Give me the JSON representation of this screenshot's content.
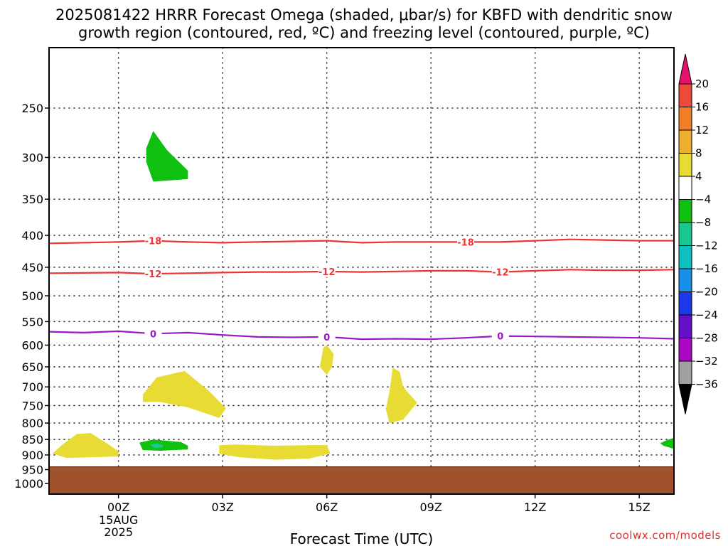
{
  "title_line1": "2025081422 HRRR Forecast Omega (shaded, μbar/s) for KBFD with dendritic snow",
  "title_line2": "growth region (contoured, red, ºC) and freezing level (contoured, purple, ºC)",
  "footer": "coolwx.com/models",
  "chart_data": {
    "type": "contour",
    "title": "2025081422 HRRR Forecast Omega (shaded, μbar/s) for KBFD with dendritic snow growth region (contoured, red, ºC) and freezing level (contoured, purple, ºC)",
    "xlabel": "Forecast Time (UTC)",
    "ylabel": "",
    "x_unit": "hours from 00Z 15AUG 2025",
    "xlim": [
      -2,
      16
    ],
    "ylim": [
      1040,
      200
    ],
    "y_scale": "log-pressure (hPa)",
    "grid": true,
    "x_ticks": [
      {
        "x": 0,
        "label": "00Z",
        "sub": [
          "15AUG",
          "2025"
        ]
      },
      {
        "x": 3,
        "label": "03Z"
      },
      {
        "x": 6,
        "label": "06Z"
      },
      {
        "x": 9,
        "label": "09Z"
      },
      {
        "x": 12,
        "label": "12Z"
      },
      {
        "x": 15,
        "label": "15Z"
      }
    ],
    "y_ticks": [
      250,
      300,
      350,
      400,
      450,
      500,
      550,
      600,
      650,
      700,
      750,
      800,
      850,
      900,
      950,
      1000
    ],
    "colorbar": {
      "labels": [
        "20",
        "16",
        "12",
        "8",
        "4",
        "−4",
        "−8",
        "−12",
        "−16",
        "−20",
        "−24",
        "−28",
        "−32",
        "−36"
      ],
      "colors": [
        "#e8106e",
        "#ee4a3a",
        "#f07f28",
        "#eeae30",
        "#e8dc34",
        "#ffffff",
        "#10c010",
        "#18c890",
        "#10c0c0",
        "#1890e8",
        "#1c38e8",
        "#6410c8",
        "#a808c0",
        "#a0a0a0",
        "#000000"
      ]
    },
    "contours": [
      {
        "name": "dendritic -18",
        "color": "#ee3535",
        "labels": [
          "-18"
        ],
        "x": [
          -2,
          0,
          1,
          2,
          3,
          4,
          5,
          6,
          7,
          8,
          9,
          10,
          11,
          12,
          13,
          14,
          15,
          16
        ],
        "p": [
          412,
          410,
          408,
          410,
          411,
          410,
          409,
          408,
          411,
          410,
          410,
          410,
          410,
          408,
          406,
          407,
          408,
          408
        ]
      },
      {
        "name": "dendritic -12",
        "color": "#ee3535",
        "labels": [
          "-12"
        ],
        "x": [
          -2,
          0,
          1,
          2,
          3,
          4,
          5,
          6,
          7,
          8,
          9,
          10,
          11,
          12,
          13,
          14,
          15,
          16
        ],
        "p": [
          460,
          459,
          461,
          460,
          459,
          458,
          458,
          457,
          458,
          457,
          456,
          456,
          458,
          456,
          454,
          455,
          455,
          454
        ]
      },
      {
        "name": "freezing level 0",
        "color": "#9a18c8",
        "labels": [
          "0"
        ],
        "x": [
          -2,
          -1,
          0,
          1,
          2,
          3,
          4,
          5,
          6,
          7,
          8,
          9,
          10,
          11,
          12,
          13,
          14,
          15,
          16
        ],
        "p": [
          571,
          573,
          570,
          575,
          573,
          578,
          582,
          583,
          582,
          587,
          586,
          587,
          584,
          580,
          581,
          582,
          583,
          584,
          586
        ]
      }
    ],
    "shaded_regions": [
      {
        "range": "4 to 8",
        "color": "#e8dc34",
        "points": [
          [
            -1.6,
            865
          ],
          [
            -1.2,
            833
          ],
          [
            -0.8,
            830
          ],
          [
            -0.3,
            865
          ],
          [
            0.0,
            888
          ],
          [
            0.0,
            905
          ],
          [
            -0.6,
            907
          ],
          [
            -1.5,
            910
          ],
          [
            -1.9,
            895
          ]
        ]
      },
      {
        "range": "4 to 8",
        "color": "#e8dc34",
        "points": [
          [
            0.7,
            720
          ],
          [
            1.1,
            676
          ],
          [
            1.9,
            660
          ],
          [
            2.6,
            710
          ],
          [
            3.1,
            758
          ],
          [
            2.9,
            785
          ],
          [
            2.0,
            755
          ],
          [
            1.2,
            740
          ],
          [
            0.7,
            740
          ]
        ]
      },
      {
        "range": "4 to 8",
        "color": "#e8dc34",
        "points": [
          [
            2.9,
            868
          ],
          [
            3.4,
            866
          ],
          [
            4.5,
            870
          ],
          [
            5.5,
            868
          ],
          [
            6.0,
            868
          ],
          [
            6.1,
            895
          ],
          [
            5.5,
            912
          ],
          [
            4.5,
            916
          ],
          [
            3.5,
            908
          ],
          [
            2.9,
            896
          ]
        ]
      },
      {
        "range": "4 to 8",
        "color": "#e8dc34",
        "points": [
          [
            5.9,
            606
          ],
          [
            6.0,
            600
          ],
          [
            6.2,
            620
          ],
          [
            6.15,
            650
          ],
          [
            6.0,
            670
          ],
          [
            5.8,
            650
          ]
        ]
      },
      {
        "range": "4 to 8",
        "color": "#e8dc34",
        "points": [
          [
            7.9,
            652
          ],
          [
            8.1,
            662
          ],
          [
            8.2,
            700
          ],
          [
            8.6,
            742
          ],
          [
            8.2,
            790
          ],
          [
            7.8,
            800
          ],
          [
            7.7,
            760
          ],
          [
            7.8,
            715
          ]
        ]
      },
      {
        "range": "-8 to -4",
        "color": "#10c010",
        "points": [
          [
            0.8,
            290
          ],
          [
            1.0,
            272
          ],
          [
            1.4,
            292
          ],
          [
            2.0,
            315
          ],
          [
            2.0,
            325
          ],
          [
            1.0,
            328
          ],
          [
            0.8,
            305
          ]
        ]
      },
      {
        "range": "-8 to -4",
        "color": "#10c010",
        "points": [
          [
            0.6,
            860
          ],
          [
            1.0,
            850
          ],
          [
            1.8,
            858
          ],
          [
            2.0,
            870
          ],
          [
            2.0,
            882
          ],
          [
            1.2,
            886
          ],
          [
            0.7,
            884
          ]
        ]
      },
      {
        "range": "-8 to -4",
        "color": "#10c010",
        "points": [
          [
            15.8,
            852
          ],
          [
            16.0,
            845
          ],
          [
            16.0,
            880
          ],
          [
            15.7,
            870
          ],
          [
            15.6,
            862
          ]
        ]
      },
      {
        "range": "-12 to -8",
        "color": "#18c890",
        "points": [
          [
            0.9,
            866
          ],
          [
            1.1,
            862
          ],
          [
            1.3,
            868
          ],
          [
            1.25,
            876
          ],
          [
            1.05,
            878
          ]
        ]
      },
      {
        "range": "ground",
        "color": "#a0522d",
        "points": [
          [
            -2,
            940
          ],
          [
            16,
            940
          ],
          [
            16,
            1040
          ],
          [
            -2,
            1040
          ]
        ]
      }
    ]
  }
}
